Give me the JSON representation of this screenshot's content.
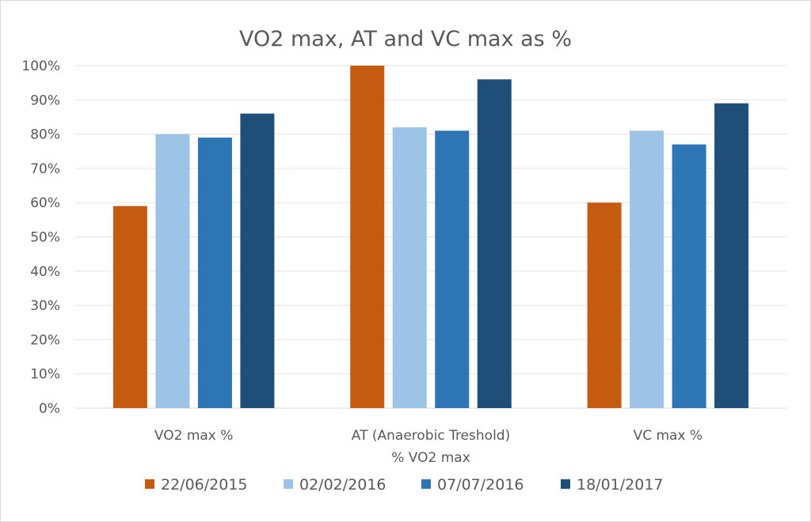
{
  "chart_data": {
    "type": "bar",
    "title": "VO2 max, AT and VC max as %",
    "xlabel": "",
    "ylabel": "",
    "categories": [
      [
        "VO2 max %"
      ],
      [
        "AT (Anaerobic Treshold)",
        "% VO2 max"
      ],
      [
        "VC max %"
      ]
    ],
    "series": [
      {
        "name": "22/06/2015",
        "color": "#c55a11",
        "values": [
          59,
          100,
          60
        ]
      },
      {
        "name": "02/02/2016",
        "color": "#9dc3e6",
        "values": [
          80,
          82,
          81
        ]
      },
      {
        "name": "07/07/2016",
        "color": "#2e75b6",
        "values": [
          79,
          81,
          77
        ]
      },
      {
        "name": "18/01/2017",
        "color": "#1f4e79",
        "values": [
          86,
          96,
          89
        ]
      }
    ],
    "ylim": [
      0,
      100
    ],
    "yticks": [
      "0%",
      "10%",
      "20%",
      "30%",
      "40%",
      "50%",
      "60%",
      "70%",
      "80%",
      "90%",
      "100%"
    ],
    "grid": true,
    "legend_position": "bottom"
  }
}
